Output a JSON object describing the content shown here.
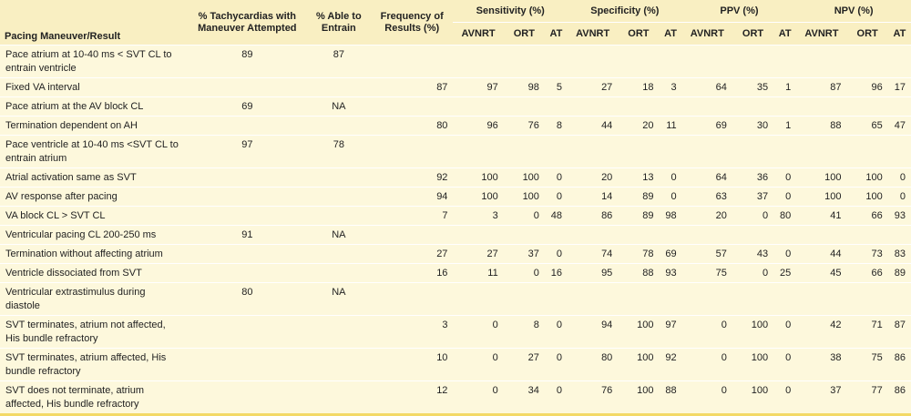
{
  "header": {
    "columns": [
      "Pacing Maneuver/Result",
      "% Tachycardias with Maneuver Attempted",
      "% Able to Entrain",
      "Frequency of Results (%)"
    ],
    "groups": [
      {
        "name": "Sensitivity (%)",
        "subcolumns": [
          "AVNRT",
          "ORT",
          "AT"
        ]
      },
      {
        "name": "Specificity (%)",
        "subcolumns": [
          "AVNRT",
          "ORT",
          "AT"
        ]
      },
      {
        "name": "PPV (%)",
        "subcolumns": [
          "AVNRT",
          "ORT",
          "AT"
        ]
      },
      {
        "name": "NPV (%)",
        "subcolumns": [
          "AVNRT",
          "ORT",
          "AT"
        ]
      }
    ]
  },
  "table": {
    "rows": [
      [
        "Pace atrium at 10-40 ms < SVT CL to entrain ventricle",
        89,
        87,
        null,
        null,
        null,
        null,
        null,
        null,
        null,
        null,
        null,
        null,
        null,
        null,
        null
      ],
      [
        "Fixed VA interval",
        null,
        null,
        87,
        97,
        98,
        5,
        27,
        18,
        3,
        64,
        35,
        1,
        87,
        96,
        17
      ],
      [
        "Pace atrium at the AV block CL",
        69,
        "NA",
        null,
        null,
        null,
        null,
        null,
        null,
        null,
        null,
        null,
        null,
        null,
        null,
        null
      ],
      [
        "Termination dependent on AH",
        null,
        null,
        80,
        96,
        76,
        8,
        44,
        20,
        11,
        69,
        30,
        1,
        88,
        65,
        47
      ],
      [
        "Pace ventricle at 10-40 ms <SVT CL to entrain atrium",
        97,
        78,
        null,
        null,
        null,
        null,
        null,
        null,
        null,
        null,
        null,
        null,
        null,
        null,
        null
      ],
      [
        "Atrial activation same as SVT",
        null,
        null,
        92,
        100,
        100,
        0,
        20,
        13,
        0,
        64,
        36,
        0,
        100,
        100,
        0
      ],
      [
        "AV response after pacing",
        null,
        null,
        94,
        100,
        100,
        0,
        14,
        89,
        0,
        63,
        37,
        0,
        100,
        100,
        0
      ],
      [
        "VA block CL > SVT CL",
        null,
        null,
        7,
        3,
        0,
        48,
        86,
        89,
        98,
        20,
        0,
        80,
        41,
        66,
        93
      ],
      [
        "Ventricular pacing CL 200-250 ms",
        91,
        "NA",
        null,
        null,
        null,
        null,
        null,
        null,
        null,
        null,
        null,
        null,
        null,
        null,
        null
      ],
      [
        "Termination without affecting atrium",
        null,
        null,
        27,
        27,
        37,
        0,
        74,
        78,
        69,
        57,
        43,
        0,
        44,
        73,
        83
      ],
      [
        "Ventricle dissociated from SVT",
        null,
        null,
        16,
        11,
        0,
        16,
        95,
        88,
        93,
        75,
        0,
        25,
        45,
        66,
        89
      ],
      [
        "Ventricular extrastimulus during diastole",
        80,
        "NA",
        null,
        null,
        null,
        null,
        null,
        null,
        null,
        null,
        null,
        null,
        null,
        null,
        null
      ],
      [
        "SVT terminates, atrium not affected, His bundle refractory",
        null,
        null,
        3,
        0,
        8,
        0,
        94,
        100,
        97,
        0,
        100,
        0,
        42,
        71,
        87
      ],
      [
        "SVT terminates, atrium affected, His bundle refractory",
        null,
        null,
        10,
        0,
        27,
        0,
        80,
        100,
        92,
        0,
        100,
        0,
        38,
        75,
        86
      ],
      [
        "SVT does not terminate, atrium affected, His bundle refractory",
        null,
        null,
        12,
        0,
        34,
        0,
        76,
        100,
        88,
        0,
        100,
        0,
        37,
        77,
        86
      ]
    ]
  }
}
